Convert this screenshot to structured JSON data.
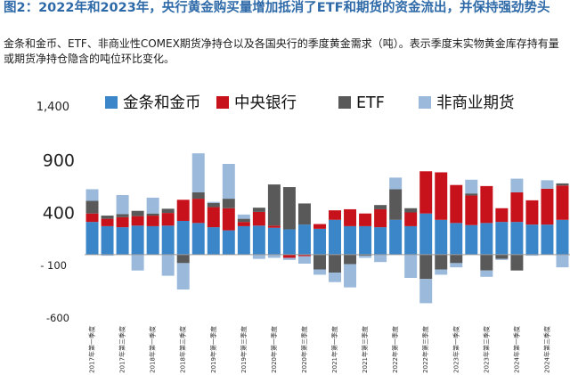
{
  "figure": {
    "title": "图2：2022年和2023年，央行黄金购买量增加抵消了ETF和期货的资金流出，并保持强劲势头",
    "subtitle": "金条和金币、ETF、非商业性COMEX期货净持仓以及各国央行的季度黄金需求（吨）。表示季度末实物黄金库存持有量或期货净持仓隐含的吨位环比变化。"
  },
  "chart_data": {
    "type": "bar",
    "stacked": true,
    "title": "",
    "xlabel": "",
    "ylabel": "",
    "ylim": [
      -600,
      1400
    ],
    "y_ticks": [
      1400,
      900,
      400,
      -100,
      -600
    ],
    "y_tick_labels": [
      "1,400",
      "900",
      "400",
      "- 100",
      "-600"
    ],
    "grid": false,
    "legend_position": "top",
    "categories": [
      "2017年第一季度",
      "2017年第二季度",
      "2017年第三季度",
      "2017年第四季度",
      "2018年第一季度",
      "2018年第二季度",
      "2018年第三季度",
      "2018年第四季度",
      "2019年第一季度",
      "2019年第二季度",
      "2019年第三季度",
      "2019年第四季度",
      "2020年第一季度",
      "2020年第二季度",
      "2020年第三季度",
      "2020年第四季度",
      "2021年第一季度",
      "2021年第二季度",
      "2021年第三季度",
      "2021年第四季度",
      "2022年第一季度",
      "2022年第二季度",
      "2022年第三季度",
      "2022年第四季度",
      "2023年第一季度",
      "2023年第二季度",
      "2023年第三季度",
      "2023年第四季度",
      "2024年第一季度",
      "2024年第二季度",
      "2024年第三季度",
      "2024年第四季度"
    ],
    "x_tick_labels": [
      "2017年第一季度",
      "2017年第三季度",
      "2018年第一季度",
      "2018年第三季度",
      "2019年第一季度",
      "2019年第三季度",
      "2020年第一季度",
      "2020年第三季度",
      "2021年第一季度",
      "2021年第三季度",
      "2022年第一季度",
      "2022年第三季度",
      "2023年第一季度",
      "2023年第三季度",
      "2024年第一季度",
      "2024年第三季度"
    ],
    "series": [
      {
        "name": "金条和金币",
        "color": "#3a86c8",
        "values": [
          310,
          270,
          260,
          275,
          270,
          275,
          320,
          300,
          260,
          230,
          270,
          275,
          255,
          240,
          285,
          245,
          330,
          270,
          270,
          260,
          330,
          270,
          390,
          330,
          300,
          280,
          300,
          310,
          310,
          285,
          285,
          330
        ]
      },
      {
        "name": "中央银行",
        "color": "#c8121b",
        "values": [
          80,
          70,
          95,
          90,
          100,
          120,
          200,
          230,
          190,
          210,
          40,
          130,
          20,
          -30,
          -15,
          45,
          90,
          160,
          120,
          170,
          0,
          130,
          400,
          450,
          360,
          280,
          350,
          130,
          280,
          230,
          340,
          325
        ]
      },
      {
        "name": "ETF",
        "color": "#595959",
        "values": [
          120,
          30,
          30,
          50,
          20,
          40,
          -80,
          60,
          40,
          90,
          30,
          40,
          390,
          400,
          200,
          -140,
          -170,
          -90,
          -10,
          40,
          290,
          40,
          -230,
          -140,
          -80,
          20,
          -150,
          -40,
          -150,
          0,
          0,
          20
        ]
      },
      {
        "name": "非商业期货",
        "color": "#9ab9db",
        "values": [
          110,
          -10,
          180,
          -150,
          150,
          -200,
          -250,
          370,
          10,
          330,
          40,
          -40,
          -30,
          -20,
          -70,
          -50,
          -90,
          -220,
          -20,
          -70,
          110,
          -220,
          -230,
          -50,
          -40,
          130,
          -60,
          -10,
          130,
          -10,
          80,
          -120
        ]
      }
    ]
  }
}
